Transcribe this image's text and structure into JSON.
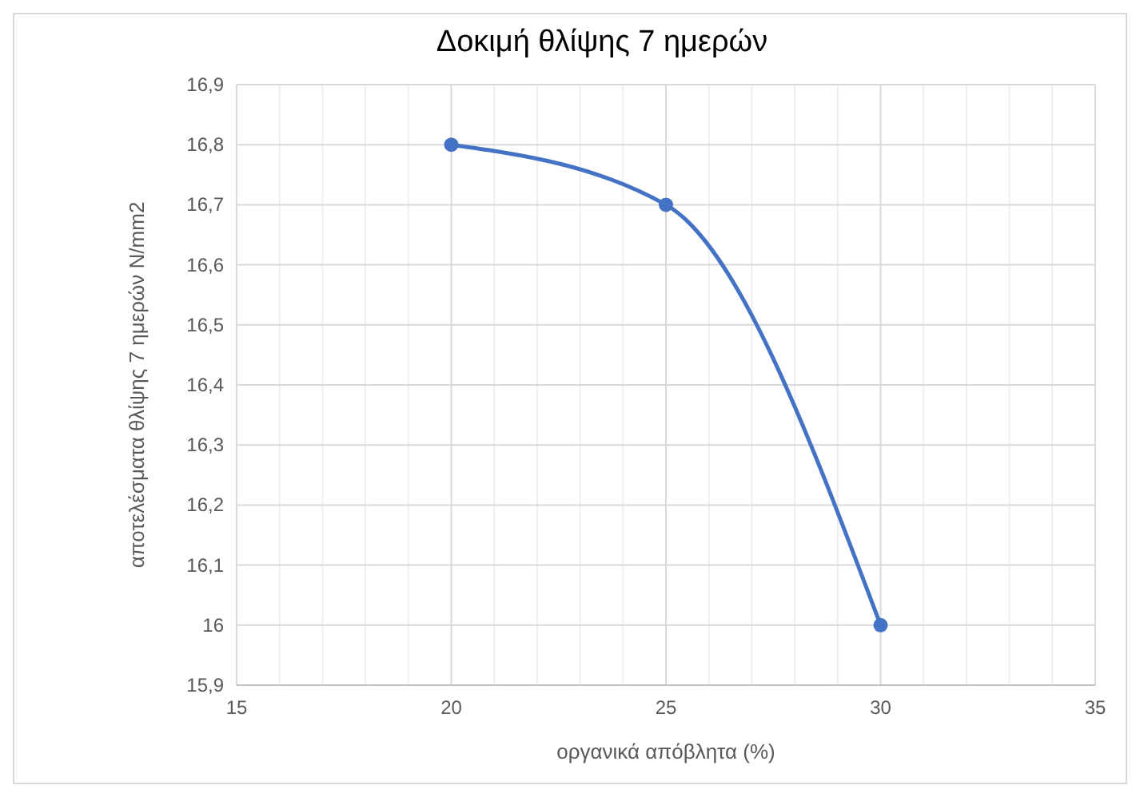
{
  "chart_data": {
    "type": "line",
    "title": "Δοκιμή θλίψης 7 ημερών",
    "xlabel": "οργανικά απόβλητα (%)",
    "ylabel": "αποτελέσματα θλίψης 7 ημερών N/mm2",
    "x": [
      20,
      25,
      30
    ],
    "series": [
      {
        "color": "#4472c4",
        "values": [
          16.8,
          16.7,
          16
        ]
      }
    ],
    "xlim": [
      15,
      35
    ],
    "xticks": [
      15,
      {
        "value": 16,
        "label": null
      },
      {
        "value": 17,
        "label": null
      },
      {
        "value": 18,
        "label": null
      },
      {
        "value": 19,
        "label": null
      },
      20,
      {
        "value": 21,
        "label": null
      },
      {
        "value": 22,
        "label": null
      },
      {
        "value": 23,
        "label": null
      },
      {
        "value": 24,
        "label": null
      },
      25,
      {
        "value": 26,
        "label": null
      },
      {
        "value": 27,
        "label": null
      },
      {
        "value": 28,
        "label": null
      },
      {
        "value": 29,
        "label": null
      },
      30,
      {
        "value": 31,
        "label": null
      },
      {
        "value": 32,
        "label": null
      },
      {
        "value": 33,
        "label": null
      },
      {
        "value": 34,
        "label": null
      },
      35
    ],
    "ylim": [
      15.9,
      16.9
    ],
    "yticks": [
      {
        "value": 15.9,
        "label": "15,9"
      },
      16,
      {
        "value": 16.1,
        "label": "16,1"
      },
      {
        "value": 16.2,
        "label": "16,2"
      },
      {
        "value": 16.3,
        "label": "16,3"
      },
      {
        "value": 16.4,
        "label": "16,4"
      },
      {
        "value": 16.5,
        "label": "16,5"
      },
      {
        "value": 16.6,
        "label": "16,6"
      },
      {
        "value": 16.7,
        "label": "16,7"
      },
      {
        "value": 16.8,
        "label": "16,8"
      },
      {
        "value": 16.9,
        "label": "16,9"
      }
    ],
    "grid": true,
    "marker": "circle",
    "line_style": "solid"
  }
}
